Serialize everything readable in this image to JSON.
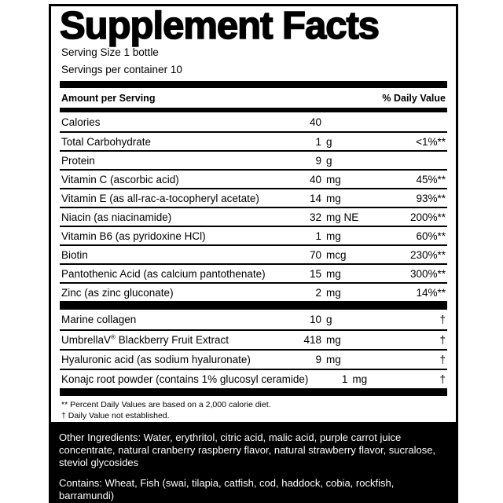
{
  "label": {
    "title": "Supplement Facts",
    "serving_size": "Serving Size 1 bottle",
    "servings_per_container": "Servings per container 10",
    "columns": {
      "amount_header": "Amount per Serving",
      "dv_header": "% Daily Value"
    },
    "main_rows": [
      {
        "name": "Calories",
        "num": "40",
        "unit": "",
        "dv": ""
      },
      {
        "name": "Total Carbohydrate",
        "num": "1",
        "unit": "g",
        "dv": "<1%**"
      },
      {
        "name": "Protein",
        "num": "9",
        "unit": "g",
        "dv": ""
      },
      {
        "name": "Vitamin C (ascorbic acid)",
        "num": "40",
        "unit": "mg",
        "dv": "45%**"
      },
      {
        "name": "Vitamin E (as all-rac-a-tocopheryl acetate)",
        "num": "14",
        "unit": "mg",
        "dv": "93%**"
      },
      {
        "name": "Niacin (as niacinamide)",
        "num": "32",
        "unit": "mg NE",
        "dv": "200%**"
      },
      {
        "name": "Vitamin B6 (as pyridoxine HCl)",
        "num": "1",
        "unit": "mg",
        "dv": "60%**"
      },
      {
        "name": "Biotin",
        "num": "70",
        "unit": "mcg",
        "dv": "230%**"
      },
      {
        "name": "Pantothenic Acid (as calcium pantothenate)",
        "num": "15",
        "unit": "mg",
        "dv": "300%**"
      },
      {
        "name": "Zinc (as zinc gluconate)",
        "num": "2",
        "unit": "mg",
        "dv": "14%**"
      }
    ],
    "blend_rows": [
      {
        "name": "Marine collagen",
        "num": "10",
        "unit": "g",
        "dv": "†"
      },
      {
        "name": "UmbrellaV® Blackberry Fruit Extract",
        "num": "418",
        "unit": "mg",
        "dv": "†"
      },
      {
        "name": "Hyaluronic acid (as sodium hyaluronate)",
        "num": "9",
        "unit": "mg",
        "dv": "†"
      },
      {
        "name": "Konajc root powder (contains 1% glucosyl ceramide)",
        "num": "1",
        "unit": "mg",
        "dv": "†"
      }
    ],
    "footnotes": [
      "** Percent Daily Values are based on a 2,000 calorie diet.",
      "† Daily Value not established."
    ]
  },
  "footer": {
    "other_ingredients": "Other Ingredients: Water, erythritol, citric acid, malic acid, purple carrot juice concentrate, natural cranberry raspberry flavor, natural strawberry flavor, sucralose, steviol glycosides",
    "contains": "Contains: Wheat, Fish (swai, tilapia, catfish, cod, haddock, cobia, rockfish, barramundi)",
    "background_color": "#000000",
    "text_color": "#ffffff"
  }
}
